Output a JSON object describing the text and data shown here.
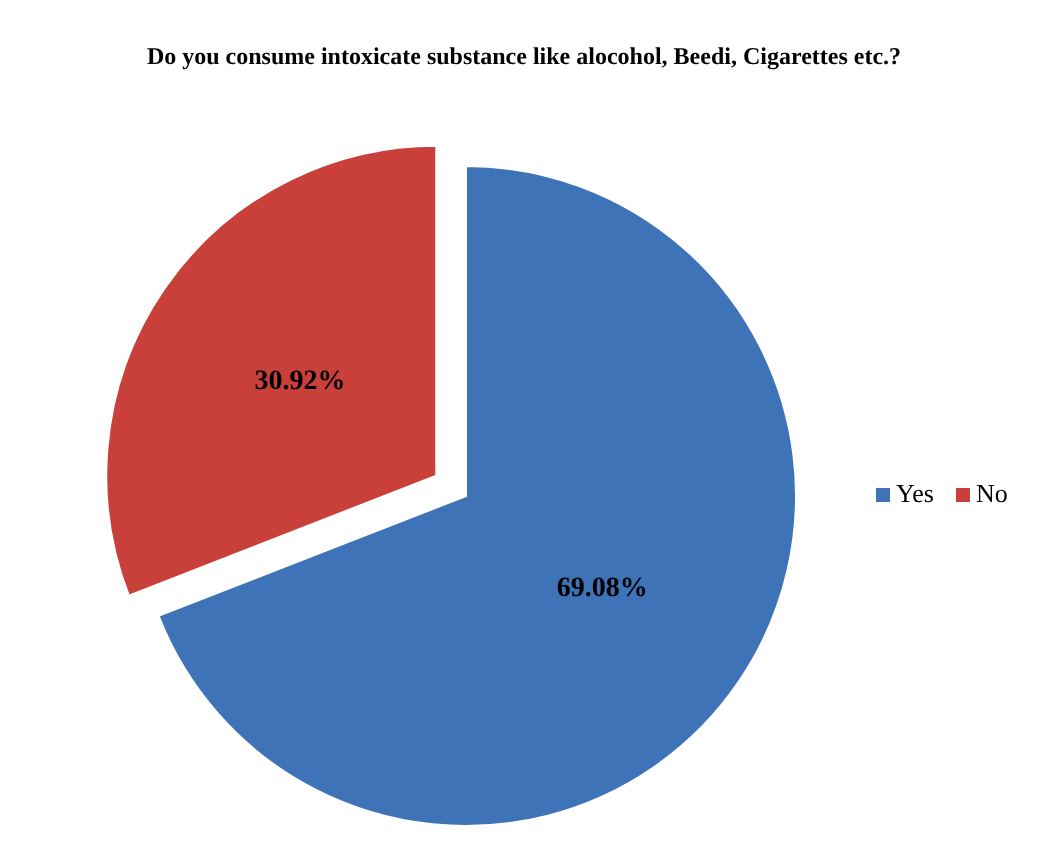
{
  "chart_data": {
    "type": "pie",
    "title": "Do you consume intoxicate substance like alocohol, Beedi, Cigarettes etc.?",
    "categories": [
      "Yes",
      "No"
    ],
    "values": [
      69.08,
      30.92
    ],
    "colors": [
      "#3f73b8",
      "#c9403a"
    ],
    "value_labels": [
      "69.08%",
      "30.92%"
    ],
    "legend": "right"
  }
}
